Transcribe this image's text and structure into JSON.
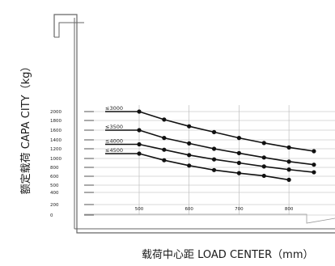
{
  "chart_data": {
    "type": "line",
    "title": "",
    "xlabel": "载荷中心距 LOAD CENTER（mm）",
    "ylabel": "额定载荷 CAPA CITY（kg）",
    "x_ticks": [
      "500",
      "600",
      "700",
      "800"
    ],
    "y_ticks": [
      "0",
      "200",
      "400",
      "500",
      "600",
      "800",
      "1000",
      "1200",
      "1400",
      "1600",
      "1800",
      "2000"
    ],
    "xlim": [
      500,
      900
    ],
    "grid": true,
    "legend_placement": "left",
    "series": [
      {
        "name": "≤3000",
        "x": [
          500,
          550,
          600,
          650,
          700,
          750,
          800,
          850
        ],
        "y": [
          2000,
          1820,
          1680,
          1560,
          1440,
          1330,
          1230,
          1150
        ]
      },
      {
        "name": "≤3500",
        "x": [
          500,
          550,
          600,
          650,
          700,
          750,
          800,
          850
        ],
        "y": [
          1600,
          1440,
          1320,
          1200,
          1110,
          1020,
          930,
          860
        ]
      },
      {
        "name": "≤4000",
        "x": [
          500,
          550,
          600,
          650,
          700,
          750,
          800,
          850
        ],
        "y": [
          1300,
          1180,
          1070,
          980,
          900,
          820,
          750,
          690
        ]
      },
      {
        "name": "≤4500",
        "x": [
          500,
          550,
          600,
          650,
          700,
          750,
          800
        ],
        "y": [
          1100,
          960,
          840,
          740,
          670,
          610,
          560
        ]
      }
    ],
    "colors": {
      "line": "#111111",
      "grid": "#b5b5b5",
      "frame": "#666666",
      "background": "#ffffff"
    }
  }
}
